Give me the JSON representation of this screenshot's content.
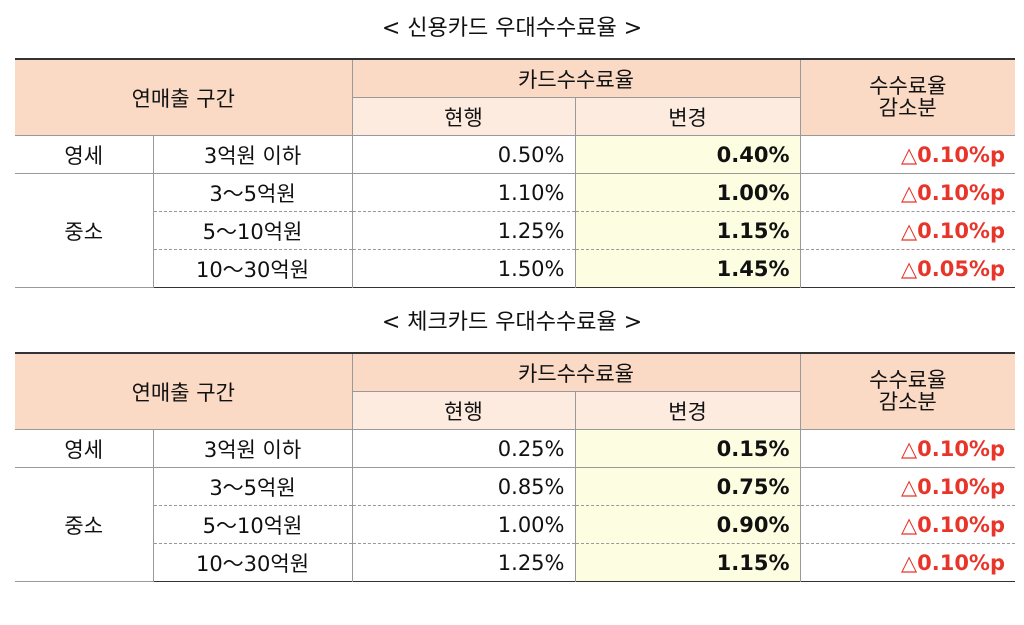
{
  "tables": [
    {
      "title": "< 신용카드 우대수수료율 >",
      "header": {
        "segment": "연매출 구간",
        "card_fee": "카드수수료율",
        "current": "현행",
        "changed": "변경",
        "reduction": "수수료율 감소분"
      },
      "groups": [
        {
          "name": "영세",
          "rows": [
            [
              "3억원 이하",
              "0.50%",
              "0.40%",
              "△0.10%p"
            ]
          ]
        },
        {
          "name": "중소",
          "rows": [
            [
              "3～5억원",
              "1.10%",
              "1.00%",
              "△0.10%p"
            ],
            [
              "5～10억원",
              "1.25%",
              "1.15%",
              "△0.10%p"
            ],
            [
              "10～30억원",
              "1.50%",
              "1.45%",
              "△0.05%p"
            ]
          ]
        }
      ]
    },
    {
      "title": "< 체크카드 우대수수료율 >",
      "header": {
        "segment": "연매출 구간",
        "card_fee": "카드수수료율",
        "current": "현행",
        "changed": "변경",
        "reduction": "수수료율 감소분"
      },
      "groups": [
        {
          "name": "영세",
          "rows": [
            [
              "3억원 이하",
              "0.25%",
              "0.15%",
              "△0.10%p"
            ]
          ]
        },
        {
          "name": "중소",
          "rows": [
            [
              "3～5억원",
              "0.85%",
              "0.75%",
              "△0.10%p"
            ],
            [
              "5～10억원",
              "1.00%",
              "0.90%",
              "△0.10%p"
            ],
            [
              "10～30억원",
              "1.25%",
              "1.15%",
              "△0.10%p"
            ]
          ]
        }
      ]
    }
  ]
}
